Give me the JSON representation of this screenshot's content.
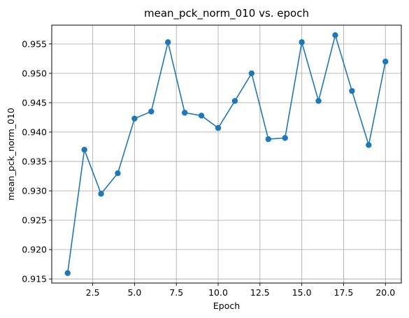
{
  "chart_data": {
    "type": "line",
    "title": "mean_pck_norm_010 vs. epoch",
    "xlabel": "Epoch",
    "ylabel": "mean_pck_norm_010",
    "xlim": [
      0.05,
      20.95
    ],
    "ylim": [
      0.9143,
      0.9582
    ],
    "grid": true,
    "color": "#1f77b4",
    "x_ticks": [
      2.5,
      5.0,
      7.5,
      10.0,
      12.5,
      15.0,
      17.5,
      20.0
    ],
    "x_tick_labels": [
      "2.5",
      "5.0",
      "7.5",
      "10.0",
      "12.5",
      "15.0",
      "17.5",
      "20.0"
    ],
    "y_ticks": [
      0.915,
      0.92,
      0.925,
      0.93,
      0.935,
      0.94,
      0.945,
      0.95,
      0.955
    ],
    "y_tick_labels": [
      "0.915",
      "0.920",
      "0.925",
      "0.930",
      "0.935",
      "0.940",
      "0.945",
      "0.950",
      "0.955"
    ],
    "series": [
      {
        "x": [
          1,
          2,
          3,
          4,
          5,
          6,
          7,
          8,
          9,
          10,
          11,
          12,
          13,
          14,
          15,
          16,
          17,
          18,
          19,
          20
        ],
        "values": [
          0.916,
          0.937,
          0.9295,
          0.933,
          0.9423,
          0.9435,
          0.9553,
          0.9433,
          0.9428,
          0.9407,
          0.9453,
          0.95,
          0.9388,
          0.939,
          0.9553,
          0.9453,
          0.9565,
          0.947,
          0.9378,
          0.952
        ]
      }
    ]
  }
}
